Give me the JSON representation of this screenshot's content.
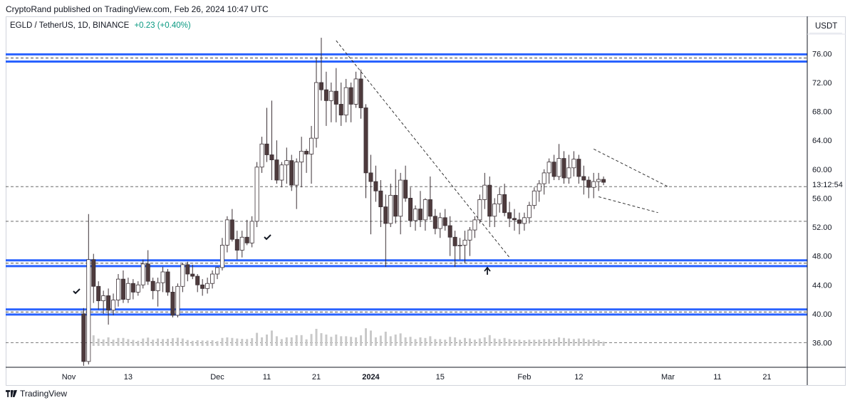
{
  "header": {
    "published": "CryptoRand published on TradingView.com, Feb 26, 2024 10:47 UTC"
  },
  "symbol": {
    "name": "EGLD / TetherUS, 1D, BINANCE",
    "change": "+0.23 (+0.40%)"
  },
  "price_scale": {
    "unit": "USDT",
    "countdown": "13:12:54"
  },
  "footer": {
    "brand": "TradingView"
  },
  "colors": {
    "up_fill": "#ffffff",
    "down_fill": "#4e3b3d",
    "candle_stroke": "#3b3035",
    "zone": "#2962ff",
    "grid_dash": "#555555"
  },
  "chart_data": {
    "type": "candlestick",
    "title": "EGLD / TetherUS, 1D, BINANCE",
    "ylabel": "USDT",
    "ylim": [
      32.6,
      78.4
    ],
    "y_ticks": [
      36,
      40,
      44,
      48,
      52,
      56,
      60,
      64,
      68,
      72,
      76
    ],
    "y_tick_labels": [
      "36.00",
      "40.00",
      "44.00",
      "48.00",
      "52.00",
      "56.00",
      "60.00",
      "64.00",
      "68.00",
      "72.00",
      "76.00"
    ],
    "x_ticks": [
      {
        "label": "Nov",
        "day": 1
      },
      {
        "label": "13",
        "day": 13
      },
      {
        "label": "Dec",
        "day": 31
      },
      {
        "label": "11",
        "day": 41
      },
      {
        "label": "21",
        "day": 51
      },
      {
        "label": "2024",
        "day": 62
      },
      {
        "label": "15",
        "day": 76
      },
      {
        "label": "Feb",
        "day": 93
      },
      {
        "label": "12",
        "day": 104
      },
      {
        "label": "Mar",
        "day": 122
      },
      {
        "label": "11",
        "day": 132
      },
      {
        "label": "21",
        "day": 142
      }
    ],
    "candles_start": "2023-11-04",
    "candles": [
      [
        40.0,
        40.8,
        32.8,
        33.4
      ],
      [
        33.4,
        53.8,
        33.0,
        47.5
      ],
      [
        47.5,
        48.3,
        41.5,
        43.8
      ],
      [
        43.8,
        44.5,
        40.6,
        41.8
      ],
      [
        41.8,
        43.2,
        40.0,
        42.5
      ],
      [
        42.5,
        43.5,
        38.5,
        40.5
      ],
      [
        40.5,
        42.8,
        39.8,
        41.9
      ],
      [
        41.9,
        45.5,
        41.0,
        44.8
      ],
      [
        44.8,
        46.0,
        41.5,
        42.0
      ],
      [
        42.0,
        45.0,
        41.5,
        44.2
      ],
      [
        44.2,
        44.8,
        42.0,
        43.0
      ],
      [
        43.0,
        44.5,
        42.5,
        44.0
      ],
      [
        44.0,
        47.5,
        43.5,
        46.9
      ],
      [
        46.9,
        48.8,
        44.0,
        44.5
      ],
      [
        44.5,
        45.0,
        42.0,
        43.2
      ],
      [
        43.2,
        45.0,
        41.0,
        44.3
      ],
      [
        44.3,
        46.5,
        43.0,
        45.8
      ],
      [
        45.8,
        46.2,
        42.5,
        43.0
      ],
      [
        43.0,
        43.8,
        39.5,
        39.8
      ],
      [
        39.8,
        44.2,
        39.5,
        43.8
      ],
      [
        43.8,
        47.0,
        43.0,
        46.8
      ],
      [
        46.8,
        47.2,
        44.5,
        45.5
      ],
      [
        45.5,
        46.8,
        44.8,
        45.2
      ],
      [
        45.2,
        45.5,
        43.0,
        44.0
      ],
      [
        44.0,
        44.8,
        42.5,
        43.5
      ],
      [
        43.5,
        45.0,
        42.8,
        44.2
      ],
      [
        44.2,
        46.0,
        43.5,
        45.5
      ],
      [
        45.5,
        46.5,
        44.8,
        46.4
      ],
      [
        46.4,
        50.5,
        46.0,
        49.5
      ],
      [
        49.5,
        53.5,
        48.5,
        53.0
      ],
      [
        53.0,
        54.5,
        50.0,
        50.3
      ],
      [
        50.3,
        51.5,
        47.5,
        48.8
      ],
      [
        48.8,
        51.5,
        47.8,
        50.6
      ],
      [
        50.6,
        53.0,
        49.5,
        49.8
      ],
      [
        49.8,
        53.5,
        49.2,
        52.8
      ],
      [
        52.8,
        61.0,
        52.0,
        60.3
      ],
      [
        60.3,
        64.5,
        59.5,
        63.5
      ],
      [
        63.5,
        68.5,
        61.0,
        62.0
      ],
      [
        62.0,
        69.5,
        58.5,
        61.3
      ],
      [
        61.3,
        64.0,
        58.0,
        58.5
      ],
      [
        58.5,
        61.0,
        57.5,
        60.6
      ],
      [
        60.6,
        63.0,
        58.0,
        61.2
      ],
      [
        61.2,
        62.0,
        57.0,
        57.8
      ],
      [
        57.8,
        61.5,
        54.5,
        61.0
      ],
      [
        61.0,
        64.5,
        57.5,
        62.5
      ],
      [
        62.5,
        62.8,
        59.5,
        62.1
      ],
      [
        62.1,
        66.0,
        58.0,
        64.3
      ],
      [
        64.3,
        75.5,
        63.0,
        72.0
      ],
      [
        72.0,
        78.2,
        69.5,
        71.0
      ],
      [
        71.0,
        73.5,
        66.0,
        69.5
      ],
      [
        69.5,
        72.0,
        66.5,
        70.8
      ],
      [
        70.8,
        74.0,
        66.5,
        69.0
      ],
      [
        69.0,
        72.0,
        66.0,
        67.5
      ],
      [
        67.5,
        72.5,
        66.5,
        71.3
      ],
      [
        71.3,
        72.0,
        66.5,
        69.0
      ],
      [
        69.0,
        73.5,
        68.5,
        72.5
      ],
      [
        72.5,
        73.8,
        67.0,
        68.5
      ],
      [
        68.5,
        69.0,
        56.0,
        59.5
      ],
      [
        59.5,
        62.0,
        51.0,
        58.3
      ],
      [
        58.3,
        60.5,
        55.5,
        57.0
      ],
      [
        57.0,
        58.5,
        52.0,
        54.8
      ],
      [
        54.8,
        56.5,
        46.5,
        52.5
      ],
      [
        52.5,
        58.0,
        52.0,
        56.4
      ],
      [
        56.4,
        60.0,
        52.5,
        53.5
      ],
      [
        53.5,
        59.5,
        51.0,
        58.5
      ],
      [
        58.5,
        60.5,
        55.5,
        56.0
      ],
      [
        56.0,
        57.5,
        52.0,
        52.9
      ],
      [
        52.9,
        55.0,
        51.5,
        54.5
      ],
      [
        54.5,
        57.0,
        52.0,
        53.0
      ],
      [
        53.0,
        56.0,
        51.5,
        55.8
      ],
      [
        55.8,
        59.0,
        53.0,
        53.5
      ],
      [
        53.5,
        54.5,
        51.0,
        51.8
      ],
      [
        51.8,
        54.0,
        50.5,
        53.3
      ],
      [
        53.3,
        54.5,
        51.5,
        52.2
      ],
      [
        52.2,
        53.5,
        48.0,
        50.6
      ],
      [
        50.6,
        51.5,
        46.5,
        49.4
      ],
      [
        49.4,
        50.5,
        47.5,
        49.5
      ],
      [
        49.5,
        51.5,
        47.0,
        50.2
      ],
      [
        50.2,
        52.0,
        48.0,
        51.6
      ],
      [
        51.6,
        53.5,
        50.5,
        53.0
      ],
      [
        53.0,
        56.5,
        52.5,
        55.8
      ],
      [
        55.8,
        59.5,
        54.5,
        57.8
      ],
      [
        57.8,
        59.0,
        52.0,
        53.5
      ],
      [
        53.5,
        56.0,
        52.0,
        55.2
      ],
      [
        55.2,
        57.5,
        54.0,
        56.5
      ],
      [
        56.5,
        58.0,
        53.5,
        54.0
      ],
      [
        54.0,
        55.5,
        52.0,
        53.2
      ],
      [
        53.2,
        54.5,
        51.5,
        53.0
      ],
      [
        53.0,
        54.0,
        51.0,
        52.5
      ],
      [
        52.5,
        54.0,
        51.5,
        53.3
      ],
      [
        53.3,
        55.5,
        52.5,
        55.0
      ],
      [
        55.0,
        57.5,
        54.5,
        57.0
      ],
      [
        57.0,
        58.5,
        55.5,
        58.0
      ],
      [
        58.0,
        60.0,
        56.5,
        59.5
      ],
      [
        59.5,
        61.5,
        58.0,
        61.0
      ],
      [
        61.0,
        62.0,
        58.5,
        59.0
      ],
      [
        59.0,
        63.5,
        58.5,
        61.5
      ],
      [
        61.5,
        62.5,
        58.0,
        58.8
      ],
      [
        58.8,
        62.0,
        58.0,
        60.2
      ],
      [
        60.2,
        62.5,
        59.0,
        61.4
      ],
      [
        61.4,
        62.0,
        58.0,
        59.0
      ],
      [
        59.0,
        60.5,
        56.5,
        58.5
      ],
      [
        58.5,
        59.0,
        56.0,
        57.5
      ],
      [
        57.5,
        59.5,
        56.0,
        58.3
      ],
      [
        58.3,
        59.5,
        57.0,
        58.6
      ],
      [
        58.6,
        59.0,
        57.8,
        58.2
      ]
    ]
  }
}
